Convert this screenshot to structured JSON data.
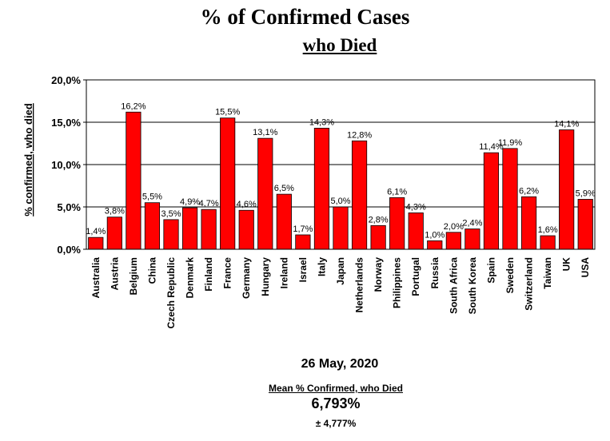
{
  "chart_data": {
    "type": "bar",
    "title": "% of Confirmed Cases",
    "subtitle": "who Died",
    "ylabel": "% confirmed, who died",
    "ylim": [
      0,
      20
    ],
    "yticks": [
      "0,0%",
      "5,0%",
      "10,0%",
      "15,0%",
      "20,0%"
    ],
    "grid": true,
    "bar_color": "#ff0000",
    "categories": [
      "Australia",
      "Austria",
      "Belgium",
      "China",
      "Czech Republic",
      "Denmark",
      "Finland",
      "France",
      "Germany",
      "Hungary",
      "Ireland",
      "Israel",
      "Italy",
      "Japan",
      "Netherlands",
      "Norway",
      "Philippines",
      "Portugal",
      "Russia",
      "South Africa",
      "South Korea",
      "Spain",
      "Sweden",
      "Switzerland",
      "Taiwan",
      "UK",
      "USA"
    ],
    "values": [
      1.4,
      3.8,
      16.2,
      5.5,
      3.5,
      4.9,
      4.7,
      15.5,
      4.6,
      13.1,
      6.5,
      1.7,
      14.3,
      5.0,
      12.8,
      2.8,
      6.1,
      4.3,
      1.0,
      2.0,
      2.4,
      11.4,
      11.9,
      6.2,
      1.6,
      14.1,
      5.9
    ],
    "value_labels": [
      "1,4%",
      "3,8%",
      "16,2%",
      "5,5%",
      "3,5%",
      "4,9%",
      "4,7%",
      "15,5%",
      "4,6%",
      "13,1%",
      "6,5%",
      "1,7%",
      "14,3%",
      "5,0%",
      "12,8%",
      "2,8%",
      "6,1%",
      "4,3%",
      "1,0%",
      "2,0%",
      "2,4%",
      "11,4%",
      "11,9%",
      "6,2%",
      "1,6%",
      "14,1%",
      "5,9%"
    ]
  },
  "footer": {
    "date": "26 May, 2020",
    "mean_label": "Mean % Confirmed, who Died",
    "mean_value": "6,793%",
    "mean_sd": "± 4,777%"
  }
}
